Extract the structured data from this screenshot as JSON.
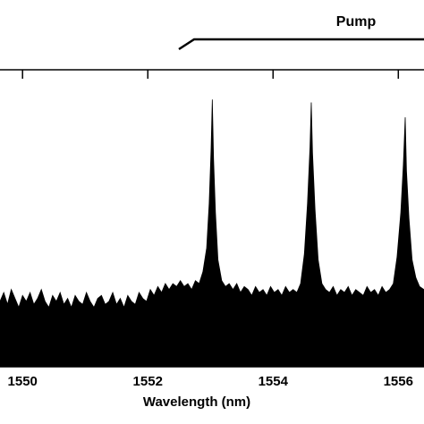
{
  "chart_data": {
    "type": "area",
    "annotation": "Pump",
    "xlabel": "Wavelength (nm)",
    "color": "#000000",
    "xlim": [
      1549.64,
      1556.41
    ],
    "xticks": [
      1550,
      1552,
      1554,
      1556
    ],
    "ylim": [
      0,
      100
    ],
    "x": [
      1549.64,
      1549.7,
      1549.76,
      1549.82,
      1549.88,
      1549.94,
      1550.0,
      1550.06,
      1550.12,
      1550.18,
      1550.24,
      1550.3,
      1550.36,
      1550.42,
      1550.48,
      1550.54,
      1550.6,
      1550.66,
      1550.72,
      1550.78,
      1550.84,
      1550.9,
      1550.96,
      1551.02,
      1551.08,
      1551.14,
      1551.2,
      1551.26,
      1551.32,
      1551.38,
      1551.44,
      1551.5,
      1551.56,
      1551.62,
      1551.68,
      1551.74,
      1551.8,
      1551.86,
      1551.92,
      1551.98,
      1552.04,
      1552.1,
      1552.16,
      1552.22,
      1552.28,
      1552.34,
      1552.4,
      1552.46,
      1552.52,
      1552.58,
      1552.64,
      1552.7,
      1552.76,
      1552.82,
      1552.88,
      1552.94,
      1552.98,
      1553.01,
      1553.03,
      1553.05,
      1553.08,
      1553.12,
      1553.18,
      1553.24,
      1553.3,
      1553.36,
      1553.42,
      1553.48,
      1553.54,
      1553.6,
      1553.66,
      1553.72,
      1553.78,
      1553.84,
      1553.9,
      1553.96,
      1554.02,
      1554.08,
      1554.14,
      1554.2,
      1554.26,
      1554.32,
      1554.38,
      1554.44,
      1554.5,
      1554.55,
      1554.59,
      1554.61,
      1554.63,
      1554.67,
      1554.72,
      1554.78,
      1554.84,
      1554.9,
      1554.96,
      1555.02,
      1555.08,
      1555.14,
      1555.2,
      1555.26,
      1555.32,
      1555.38,
      1555.44,
      1555.5,
      1555.56,
      1555.62,
      1555.68,
      1555.74,
      1555.8,
      1555.86,
      1555.92,
      1555.98,
      1556.04,
      1556.08,
      1556.11,
      1556.13,
      1556.17,
      1556.22,
      1556.28,
      1556.34,
      1556.41
    ],
    "values": [
      22,
      25,
      21,
      26,
      23,
      20,
      24,
      22,
      25,
      21,
      23,
      26,
      22,
      20,
      24,
      22,
      25,
      21,
      23,
      20,
      24,
      22,
      21,
      25,
      22,
      20,
      23,
      24,
      21,
      22,
      25,
      21,
      23,
      20,
      24,
      22,
      21,
      25,
      23,
      22,
      26,
      24,
      27,
      25,
      28,
      26,
      28,
      27,
      29,
      27,
      28,
      26,
      29,
      28,
      32,
      40,
      55,
      73,
      90,
      70,
      52,
      36,
      29,
      27,
      28,
      26,
      28,
      25,
      27,
      26,
      24,
      27,
      25,
      26,
      24,
      27,
      25,
      26,
      24,
      27,
      25,
      26,
      25,
      28,
      38,
      55,
      74,
      89,
      72,
      53,
      36,
      28,
      26,
      25,
      27,
      24,
      26,
      25,
      27,
      24,
      26,
      25,
      24,
      27,
      25,
      26,
      24,
      27,
      25,
      26,
      28,
      37,
      52,
      68,
      84,
      66,
      50,
      36,
      30,
      27,
      26
    ]
  }
}
